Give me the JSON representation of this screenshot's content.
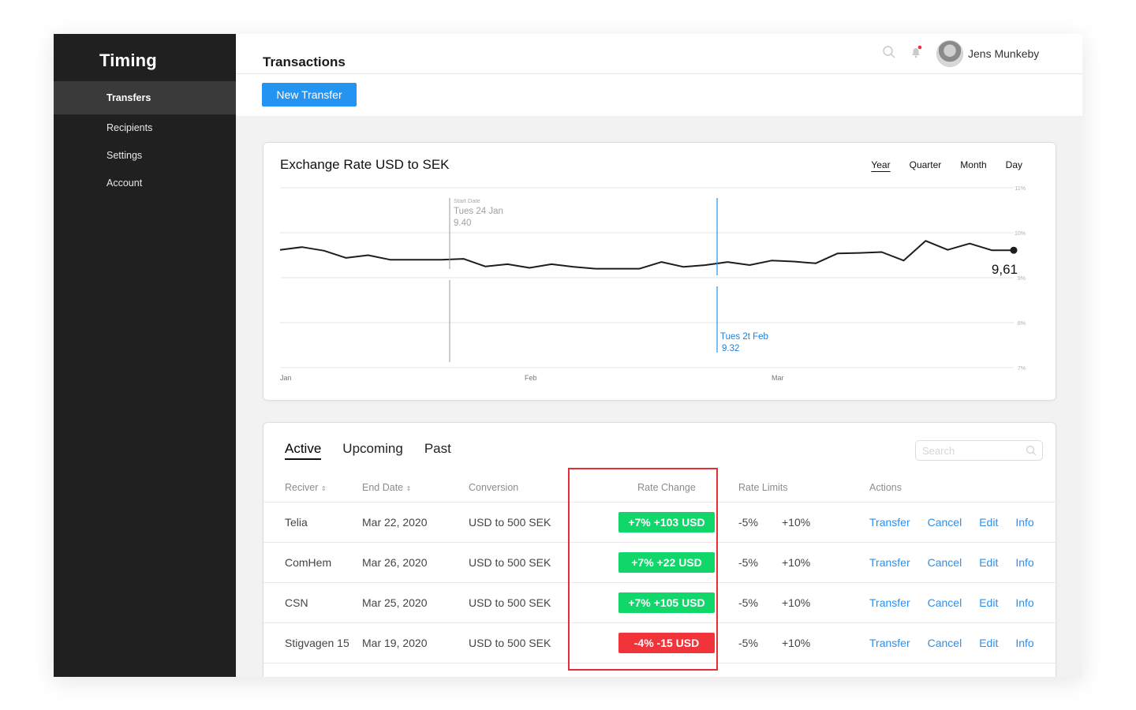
{
  "app": {
    "brand": "Timing"
  },
  "sidebar": {
    "items": [
      {
        "label": "Transfers",
        "active": true
      },
      {
        "label": "Recipients",
        "active": false
      },
      {
        "label": "Settings",
        "active": false
      },
      {
        "label": "Account",
        "active": false
      }
    ]
  },
  "header": {
    "title": "Transactions",
    "new_transfer_label": "New Transfer",
    "user_name": "Jens Munkeby"
  },
  "chart_card": {
    "title": "Exchange Rate USD to SEK",
    "periods": [
      "Year",
      "Quarter",
      "Month",
      "Day"
    ],
    "selected_period": "Year"
  },
  "chart_data": {
    "type": "line",
    "title": "Exchange Rate USD to SEK",
    "x_ticks": [
      "Jan",
      "Feb",
      "Mar"
    ],
    "y_ticks": [
      "11%",
      "10%",
      "9%",
      "8%",
      "7%"
    ],
    "series": [
      {
        "x": [
          0,
          0.03,
          0.06,
          0.09,
          0.12,
          0.15,
          0.18,
          0.22,
          0.25,
          0.28,
          0.31,
          0.34,
          0.37,
          0.4,
          0.43,
          0.46,
          0.49,
          0.52,
          0.55,
          0.58,
          0.61,
          0.64,
          0.67,
          0.7,
          0.73,
          0.76,
          0.79,
          0.82,
          0.85,
          0.88,
          0.91,
          0.94,
          0.97,
          1.0
        ],
        "values": [
          9.62,
          9.68,
          9.6,
          9.44,
          9.5,
          9.4,
          9.4,
          9.4,
          9.42,
          9.25,
          9.3,
          9.22,
          9.3,
          9.24,
          9.2,
          9.2,
          9.2,
          9.35,
          9.24,
          9.28,
          9.35,
          9.28,
          9.38,
          9.36,
          9.32,
          9.54,
          9.55,
          9.57,
          9.38,
          9.82,
          9.62,
          9.76,
          9.61,
          9.61
        ]
      }
    ],
    "last_value_label": "9,61",
    "annotations": [
      {
        "label": "Start Date",
        "date": "Tues 24 Jan",
        "value": "9.40"
      },
      {
        "label": "",
        "date": "Tues 2t Feb",
        "value": "9.32"
      }
    ]
  },
  "tabs": [
    {
      "label": "Active",
      "active": true
    },
    {
      "label": "Upcoming",
      "active": false
    },
    {
      "label": "Past",
      "active": false
    }
  ],
  "search": {
    "placeholder": "Search"
  },
  "table": {
    "headers": [
      "Reciver",
      "End Date",
      "Conversion",
      "Rate Change",
      "Rate Limits",
      "Actions"
    ],
    "rows": [
      {
        "receiver": "Telia",
        "end_date": "Mar 22, 2020",
        "conversion": "USD to 500 SEK",
        "rate_change": "+7% +103 USD",
        "positive": true,
        "limit_low": "-5%",
        "limit_high": "+10%"
      },
      {
        "receiver": "ComHem",
        "end_date": "Mar 26, 2020",
        "conversion": "USD to 500 SEK",
        "rate_change": "+7% +22 USD",
        "positive": true,
        "limit_low": "-5%",
        "limit_high": "+10%"
      },
      {
        "receiver": "CSN",
        "end_date": "Mar 25, 2020",
        "conversion": "USD to 500 SEK",
        "rate_change": "+7% +105 USD",
        "positive": true,
        "limit_low": "-5%",
        "limit_high": "+10%"
      },
      {
        "receiver": "Stigvagen 15",
        "end_date": "Mar 19, 2020",
        "conversion": "USD to 500 SEK",
        "rate_change": "-4% -15 USD",
        "positive": false,
        "limit_low": "-5%",
        "limit_high": "+10%"
      }
    ],
    "actions": [
      "Transfer",
      "Cancel",
      "Edit",
      "Info"
    ]
  },
  "colors": {
    "accent": "#2394f2",
    "positive": "#11d66a",
    "negative": "#f0343a",
    "highlight": "#e52e36",
    "sidebar": "#202020"
  }
}
